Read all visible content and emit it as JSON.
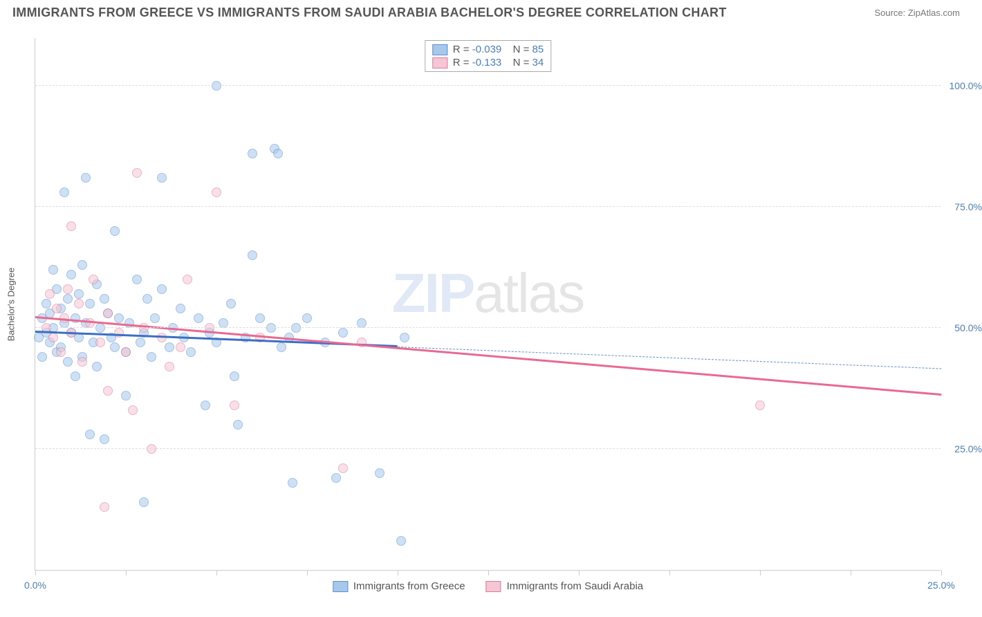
{
  "header": {
    "title": "IMMIGRANTS FROM GREECE VS IMMIGRANTS FROM SAUDI ARABIA BACHELOR'S DEGREE CORRELATION CHART",
    "source": "Source: ZipAtlas.com"
  },
  "chart": {
    "type": "scatter",
    "y_axis_label": "Bachelor's Degree",
    "background_color": "#ffffff",
    "grid_color": "#dddddd",
    "axis_color": "#cccccc",
    "tick_label_color": "#4a7ebb",
    "xlim": [
      0,
      25
    ],
    "ylim": [
      0,
      110
    ],
    "x_ticks": [
      0,
      2.5,
      5,
      7.5,
      10,
      12.5,
      15,
      17.5,
      20,
      22.5,
      25
    ],
    "x_tick_labels": {
      "0": "0.0%",
      "25": "25.0%"
    },
    "y_gridlines": [
      25,
      50,
      75,
      100
    ],
    "y_tick_labels": {
      "25": "25.0%",
      "50": "50.0%",
      "75": "75.0%",
      "100": "100.0%"
    },
    "watermark": {
      "text_bold": "ZIP",
      "text_thin": "atlas"
    },
    "point_radius": 7,
    "point_opacity": 0.55,
    "point_border_width": 1.5,
    "series": [
      {
        "name": "Immigrants from Greece",
        "fill_color": "#a7c7eb",
        "border_color": "#5a8fd0",
        "R": "-0.039",
        "N": "85",
        "trend": {
          "solid": {
            "x1": 0,
            "y1": 49,
            "x2": 10,
            "y2": 46,
            "color": "#3b6fc4",
            "width": 3
          },
          "dashed": {
            "x1": 10,
            "y1": 46,
            "x2": 25,
            "y2": 41.5,
            "color": "#5a8fd0",
            "width": 1.5
          }
        },
        "points": [
          [
            0.1,
            48
          ],
          [
            0.2,
            52
          ],
          [
            0.2,
            44
          ],
          [
            0.3,
            55
          ],
          [
            0.3,
            49
          ],
          [
            0.4,
            47
          ],
          [
            0.4,
            53
          ],
          [
            0.5,
            62
          ],
          [
            0.5,
            50
          ],
          [
            0.6,
            45
          ],
          [
            0.6,
            58
          ],
          [
            0.7,
            54
          ],
          [
            0.7,
            46
          ],
          [
            0.8,
            51
          ],
          [
            0.8,
            78
          ],
          [
            0.9,
            43
          ],
          [
            0.9,
            56
          ],
          [
            1.0,
            61
          ],
          [
            1.0,
            49
          ],
          [
            1.1,
            40
          ],
          [
            1.1,
            52
          ],
          [
            1.2,
            57
          ],
          [
            1.2,
            48
          ],
          [
            1.3,
            44
          ],
          [
            1.3,
            63
          ],
          [
            1.4,
            81
          ],
          [
            1.4,
            51
          ],
          [
            1.5,
            28
          ],
          [
            1.5,
            55
          ],
          [
            1.6,
            47
          ],
          [
            1.7,
            59
          ],
          [
            1.7,
            42
          ],
          [
            1.8,
            50
          ],
          [
            1.9,
            56
          ],
          [
            1.9,
            27
          ],
          [
            2.0,
            53
          ],
          [
            2.1,
            48
          ],
          [
            2.2,
            46
          ],
          [
            2.2,
            70
          ],
          [
            2.3,
            52
          ],
          [
            2.5,
            45
          ],
          [
            2.5,
            36
          ],
          [
            2.6,
            51
          ],
          [
            2.8,
            60
          ],
          [
            2.9,
            47
          ],
          [
            3.0,
            49
          ],
          [
            3.0,
            14
          ],
          [
            3.1,
            56
          ],
          [
            3.2,
            44
          ],
          [
            3.3,
            52
          ],
          [
            3.5,
            58
          ],
          [
            3.5,
            81
          ],
          [
            3.7,
            46
          ],
          [
            3.8,
            50
          ],
          [
            4.0,
            54
          ],
          [
            4.1,
            48
          ],
          [
            4.3,
            45
          ],
          [
            4.5,
            52
          ],
          [
            4.7,
            34
          ],
          [
            4.8,
            49
          ],
          [
            5.0,
            100
          ],
          [
            5.0,
            47
          ],
          [
            5.2,
            51
          ],
          [
            5.4,
            55
          ],
          [
            5.5,
            40
          ],
          [
            5.6,
            30
          ],
          [
            5.8,
            48
          ],
          [
            6.0,
            86
          ],
          [
            6.0,
            65
          ],
          [
            6.2,
            52
          ],
          [
            6.5,
            50
          ],
          [
            6.6,
            87
          ],
          [
            6.7,
            86
          ],
          [
            6.8,
            46
          ],
          [
            7.0,
            48
          ],
          [
            7.1,
            18
          ],
          [
            7.2,
            50
          ],
          [
            7.5,
            52
          ],
          [
            8.0,
            47
          ],
          [
            8.3,
            19
          ],
          [
            8.5,
            49
          ],
          [
            9.0,
            51
          ],
          [
            9.5,
            20
          ],
          [
            10.1,
            6
          ],
          [
            10.2,
            48
          ]
        ]
      },
      {
        "name": "Immigrants from Saudi Arabia",
        "fill_color": "#f5c6d3",
        "border_color": "#e07a9a",
        "R": "-0.133",
        "N": "34",
        "trend": {
          "solid": {
            "x1": 0,
            "y1": 52,
            "x2": 25,
            "y2": 36,
            "color": "#e86a92",
            "width": 3
          }
        },
        "points": [
          [
            0.3,
            50
          ],
          [
            0.4,
            57
          ],
          [
            0.5,
            48
          ],
          [
            0.6,
            54
          ],
          [
            0.7,
            45
          ],
          [
            0.8,
            52
          ],
          [
            0.9,
            58
          ],
          [
            1.0,
            71
          ],
          [
            1.0,
            49
          ],
          [
            1.2,
            55
          ],
          [
            1.3,
            43
          ],
          [
            1.5,
            51
          ],
          [
            1.6,
            60
          ],
          [
            1.8,
            47
          ],
          [
            1.9,
            13
          ],
          [
            2.0,
            53
          ],
          [
            2.0,
            37
          ],
          [
            2.3,
            49
          ],
          [
            2.5,
            45
          ],
          [
            2.7,
            33
          ],
          [
            2.8,
            82
          ],
          [
            3.0,
            50
          ],
          [
            3.2,
            25
          ],
          [
            3.5,
            48
          ],
          [
            3.7,
            42
          ],
          [
            4.0,
            46
          ],
          [
            4.2,
            60
          ],
          [
            4.8,
            50
          ],
          [
            5.0,
            78
          ],
          [
            5.5,
            34
          ],
          [
            6.2,
            48
          ],
          [
            8.5,
            21
          ],
          [
            9.0,
            47
          ],
          [
            20.0,
            34
          ]
        ]
      }
    ]
  },
  "legend_bottom": [
    {
      "label": "Immigrants from Greece",
      "fill": "#a7c7eb",
      "border": "#5a8fd0"
    },
    {
      "label": "Immigrants from Saudi Arabia",
      "fill": "#f5c6d3",
      "border": "#e07a9a"
    }
  ]
}
